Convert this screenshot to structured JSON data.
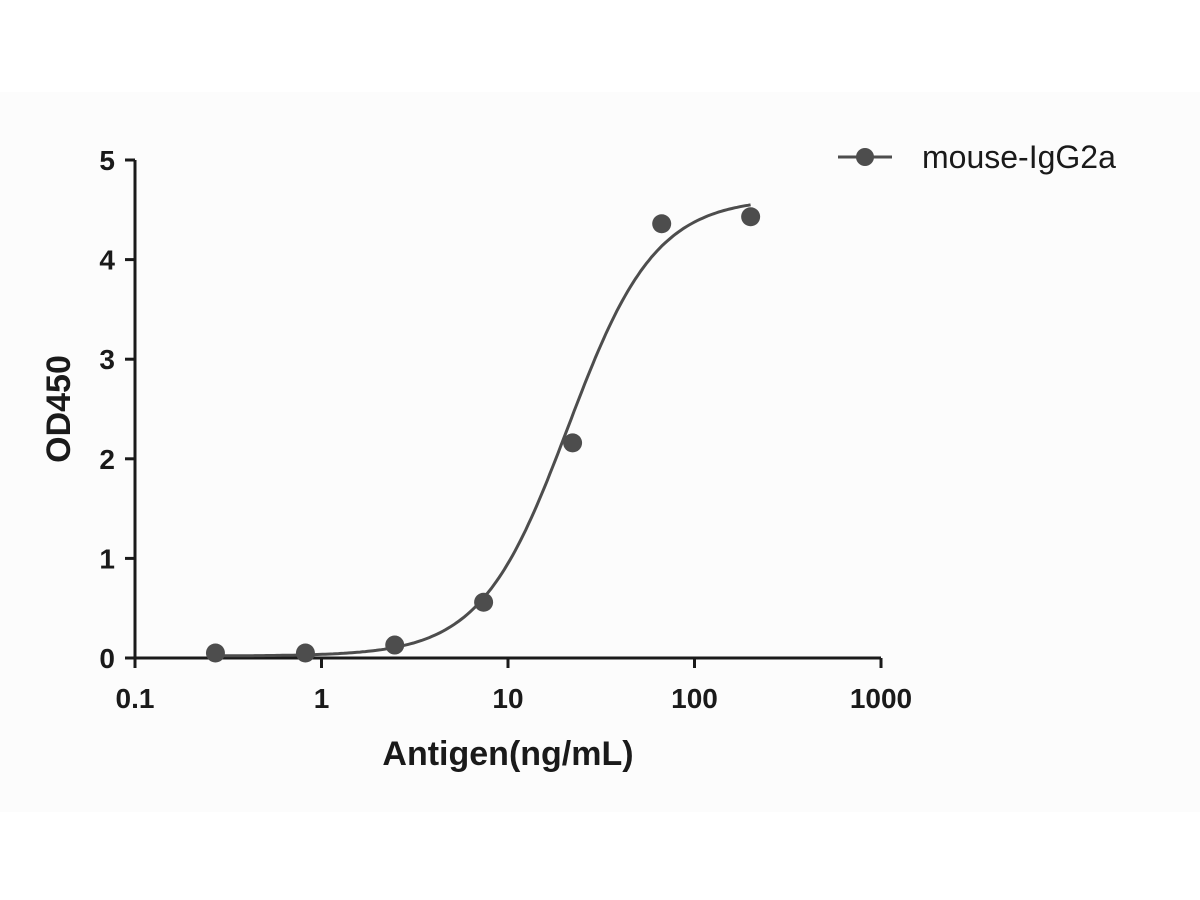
{
  "chart_data": {
    "type": "scatter",
    "title": "",
    "xlabel": "Antigen(ng/mL)",
    "ylabel": "OD450",
    "x_scale": "log",
    "xlim": [
      0.1,
      1000
    ],
    "ylim": [
      0,
      5
    ],
    "x_tick_labels": [
      "0.1",
      "1",
      "10",
      "100",
      "1000"
    ],
    "y_tick_labels": [
      "0",
      "1",
      "2",
      "3",
      "4",
      "5"
    ],
    "grid": false,
    "legend_position": "top-right",
    "series": [
      {
        "name": "mouse-IgG2a",
        "color": "#4d4d4d",
        "marker": "circle",
        "fit": "sigmoidal 4PL",
        "x": [
          0.27,
          0.82,
          2.47,
          7.4,
          22.2,
          66.7,
          200
        ],
        "y": [
          0.05,
          0.05,
          0.13,
          0.56,
          2.16,
          4.36,
          4.43
        ]
      }
    ]
  }
}
